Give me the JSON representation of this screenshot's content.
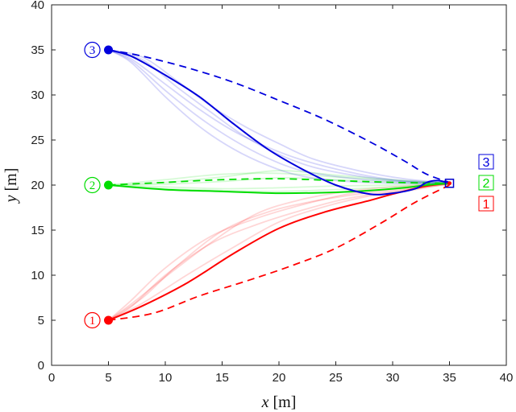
{
  "chart_data": {
    "type": "line",
    "title": "",
    "xlabel": {
      "var": "x",
      "unit": "[m]"
    },
    "ylabel": {
      "var": "y",
      "unit": "[m]"
    },
    "xlim": [
      0,
      40
    ],
    "ylim": [
      0,
      40
    ],
    "xticks": [
      "0",
      "5",
      "10",
      "15",
      "20",
      "25",
      "30",
      "35",
      "40"
    ],
    "yticks": [
      "0",
      "5",
      "10",
      "15",
      "20",
      "25",
      "30",
      "35",
      "40"
    ],
    "grid": false,
    "goal": {
      "x": 35,
      "y": 20.2
    },
    "groups": [
      {
        "id": "1",
        "color": "#ff0000",
        "start": {
          "x": 5,
          "y": 5
        },
        "legend_label": "1",
        "main": {
          "x": [
            5,
            8,
            12,
            16,
            20,
            24,
            28,
            30,
            33,
            35
          ],
          "y": [
            5,
            6.6,
            9.2,
            12.4,
            15.2,
            17,
            18.3,
            19,
            19.9,
            20.2
          ]
        },
        "dashed": {
          "x": [
            5,
            9,
            13,
            17,
            21,
            25,
            29,
            32,
            35
          ],
          "y": [
            5,
            5.8,
            7.7,
            9.3,
            11,
            13,
            15.8,
            18.1,
            20
          ]
        },
        "faint": [
          {
            "x": [
              5,
              7,
              10,
              14,
              18,
              22,
              26,
              30,
              35
            ],
            "y": [
              5,
              6.5,
              10,
              13.5,
              15.6,
              17.2,
              18.5,
              19.3,
              20.1
            ]
          },
          {
            "x": [
              5,
              7,
              10,
              14,
              18,
              22,
              26,
              30,
              35
            ],
            "y": [
              5,
              7.2,
              10.8,
              14.3,
              16.3,
              17.8,
              19,
              19.6,
              20.2
            ]
          },
          {
            "x": [
              5,
              7,
              10,
              14,
              18,
              22,
              26,
              30,
              35
            ],
            "y": [
              5,
              6.8,
              9.8,
              13.6,
              16.8,
              18.4,
              19.3,
              19.8,
              20.2
            ]
          },
          {
            "x": [
              5,
              8,
              11,
              15,
              19,
              23,
              27,
              31,
              35
            ],
            "y": [
              5,
              7.5,
              11,
              14.9,
              17,
              18.2,
              19,
              19.6,
              20.1
            ]
          },
          {
            "x": [
              5,
              8,
              12,
              16,
              20,
              24,
              28,
              32,
              35
            ],
            "y": [
              5,
              6.9,
              10.1,
              13.1,
              15.9,
              17.6,
              18.8,
              19.5,
              20.2
            ]
          }
        ]
      },
      {
        "id": "2",
        "color": "#00dd00",
        "start": {
          "x": 5,
          "y": 20
        },
        "legend_label": "2",
        "main": {
          "x": [
            5,
            10,
            15,
            20,
            25,
            28,
            31,
            33,
            35
          ],
          "y": [
            20,
            19.5,
            19.3,
            19.1,
            19.2,
            19.4,
            19.7,
            20,
            20.2
          ]
        },
        "dashed": {
          "x": [
            5,
            10,
            15,
            20,
            25,
            30,
            35
          ],
          "y": [
            20,
            20.3,
            20.6,
            20.7,
            20.5,
            20.3,
            20.2
          ]
        },
        "faint": [
          {
            "x": [
              5,
              10,
              15,
              20,
              25,
              30,
              35
            ],
            "y": [
              20,
              20.6,
              21.2,
              21.3,
              20.9,
              20.5,
              20.2
            ]
          },
          {
            "x": [
              5,
              10,
              15,
              20,
              25,
              30,
              35
            ],
            "y": [
              20,
              20.3,
              20.9,
              21.6,
              21.1,
              20.6,
              20.2
            ]
          },
          {
            "x": [
              5,
              10,
              15,
              20,
              25,
              30,
              35
            ],
            "y": [
              20,
              19.8,
              19.6,
              19.7,
              19.9,
              20,
              20.2
            ]
          },
          {
            "x": [
              5,
              10,
              15,
              20,
              25,
              30,
              35
            ],
            "y": [
              20,
              20.1,
              20.4,
              20.8,
              20.6,
              20.3,
              20.1
            ]
          },
          {
            "x": [
              5,
              10,
              15,
              20,
              25,
              30,
              35
            ],
            "y": [
              20,
              19.6,
              19.4,
              19.3,
              19.5,
              19.8,
              20.1
            ]
          }
        ]
      },
      {
        "id": "3",
        "color": "#0000dd",
        "start": {
          "x": 5,
          "y": 35
        },
        "legend_label": "3",
        "main": {
          "x": [
            5,
            7,
            10,
            13,
            16,
            19,
            22,
            25,
            28,
            30,
            32,
            33,
            34,
            35
          ],
          "y": [
            35,
            34.3,
            32.2,
            29.8,
            26.8,
            24,
            21.8,
            20,
            19,
            19.1,
            19.6,
            20.3,
            20.5,
            20.2
          ]
        },
        "dashed": {
          "x": [
            5,
            8,
            12,
            16,
            20,
            24,
            28,
            31,
            33,
            35
          ],
          "y": [
            35,
            34.3,
            33,
            31.4,
            29.4,
            27.3,
            24.8,
            22.7,
            21.2,
            20.3
          ]
        },
        "faint": [
          {
            "x": [
              5,
              7,
              10,
              13,
              16,
              19,
              22,
              26,
              30,
              35
            ],
            "y": [
              35,
              33.8,
              30.5,
              27.5,
              25,
              23,
              21.6,
              20.8,
              20.4,
              20.2
            ]
          },
          {
            "x": [
              5,
              7,
              10,
              13,
              16,
              19,
              22,
              26,
              30,
              35
            ],
            "y": [
              35,
              34,
              31.2,
              28.4,
              26,
              24.2,
              22.8,
              21.5,
              20.6,
              20.2
            ]
          },
          {
            "x": [
              5,
              7,
              10,
              13,
              16,
              19,
              22,
              26,
              30,
              35
            ],
            "y": [
              35,
              33.6,
              29.8,
              26.5,
              24,
              22.2,
              21,
              20.4,
              20.2,
              20.1
            ]
          },
          {
            "x": [
              5,
              8,
              11,
              14,
              17,
              20,
              23,
              27,
              31,
              35
            ],
            "y": [
              35,
              34.2,
              31.6,
              28.8,
              26.5,
              24.6,
              22.9,
              21.6,
              20.7,
              20.2
            ]
          },
          {
            "x": [
              5,
              8,
              11,
              14,
              17,
              20,
              23,
              27,
              31,
              35
            ],
            "y": [
              35,
              33.9,
              30.9,
              28.1,
              25.4,
              23.4,
              22,
              21,
              20.4,
              20.1
            ]
          }
        ]
      }
    ]
  }
}
